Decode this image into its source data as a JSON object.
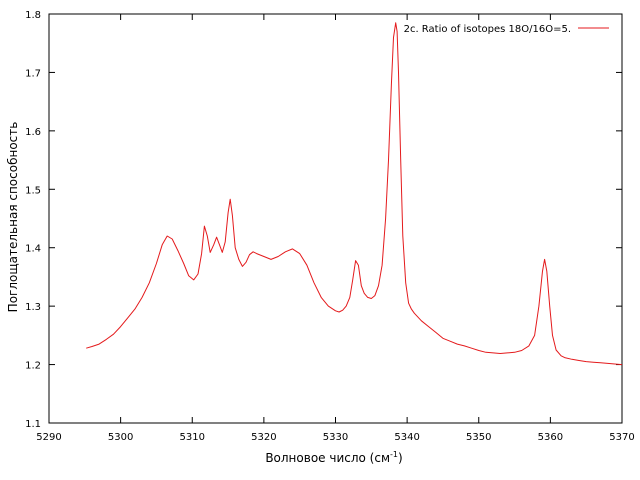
{
  "chart_data": {
    "type": "line",
    "title": "",
    "xlabel_main": "Волновое число (см",
    "xlabel_sup": "-1",
    "xlabel_close": ")",
    "ylabel": "Поглощательная способность",
    "xlim": [
      5290,
      5370
    ],
    "ylim": [
      1.1,
      1.8
    ],
    "x_ticks": [
      "5290",
      "5300",
      "5310",
      "5320",
      "5330",
      "5340",
      "5350",
      "5360",
      "5370"
    ],
    "y_ticks": [
      "1.1",
      "1.2",
      "1.3",
      "1.4",
      "1.5",
      "1.6",
      "1.7",
      "1.8"
    ],
    "grid": false,
    "legend_position": "top-right",
    "series": [
      {
        "name": "2c. Ratio of isotopes 18O/16O=5.",
        "color": "#e41a1c",
        "x": [
          5295.2,
          5296,
          5297,
          5298,
          5299,
          5300,
          5301,
          5302,
          5303,
          5304,
          5305,
          5305.8,
          5306.5,
          5307.2,
          5308,
          5308.8,
          5309.5,
          5310.2,
          5310.8,
          5311.3,
          5311.7,
          5312.1,
          5312.5,
          5313,
          5313.4,
          5313.8,
          5314.2,
          5314.6,
          5315,
          5315.3,
          5315.6,
          5316,
          5316.5,
          5317,
          5317.5,
          5318,
          5318.5,
          5319,
          5320,
          5321,
          5322,
          5323,
          5324,
          5325,
          5326,
          5327,
          5328,
          5329,
          5330,
          5330.5,
          5331,
          5331.5,
          5332,
          5332.4,
          5332.8,
          5333.2,
          5333.6,
          5334,
          5334.5,
          5335,
          5335.5,
          5336,
          5336.5,
          5337,
          5337.4,
          5337.8,
          5338.1,
          5338.4,
          5338.6,
          5338.8,
          5339.1,
          5339.4,
          5339.8,
          5340.2,
          5340.6,
          5341,
          5342,
          5343,
          5344,
          5345,
          5346,
          5347,
          5348,
          5349,
          5350,
          5351,
          5352,
          5353,
          5354,
          5355,
          5356,
          5357,
          5357.8,
          5358.4,
          5358.9,
          5359.2,
          5359.5,
          5359.9,
          5360.3,
          5360.8,
          5361.5,
          5362,
          5363,
          5364,
          5365,
          5366,
          5367,
          5368,
          5369,
          5370
        ],
        "y": [
          1.228,
          1.231,
          1.235,
          1.243,
          1.252,
          1.265,
          1.28,
          1.295,
          1.315,
          1.34,
          1.373,
          1.405,
          1.42,
          1.415,
          1.395,
          1.373,
          1.352,
          1.345,
          1.355,
          1.39,
          1.437,
          1.42,
          1.392,
          1.405,
          1.418,
          1.405,
          1.392,
          1.41,
          1.46,
          1.483,
          1.455,
          1.4,
          1.38,
          1.368,
          1.375,
          1.388,
          1.393,
          1.39,
          1.385,
          1.38,
          1.385,
          1.393,
          1.398,
          1.39,
          1.37,
          1.34,
          1.315,
          1.3,
          1.292,
          1.29,
          1.293,
          1.3,
          1.315,
          1.345,
          1.378,
          1.37,
          1.335,
          1.322,
          1.315,
          1.313,
          1.318,
          1.335,
          1.37,
          1.45,
          1.55,
          1.68,
          1.76,
          1.785,
          1.77,
          1.7,
          1.55,
          1.42,
          1.34,
          1.305,
          1.295,
          1.288,
          1.275,
          1.265,
          1.255,
          1.245,
          1.24,
          1.235,
          1.232,
          1.228,
          1.224,
          1.221,
          1.22,
          1.219,
          1.22,
          1.221,
          1.224,
          1.232,
          1.25,
          1.3,
          1.36,
          1.38,
          1.36,
          1.3,
          1.25,
          1.225,
          1.215,
          1.212,
          1.209,
          1.207,
          1.205,
          1.204,
          1.203,
          1.202,
          1.201,
          1.2
        ]
      }
    ]
  }
}
